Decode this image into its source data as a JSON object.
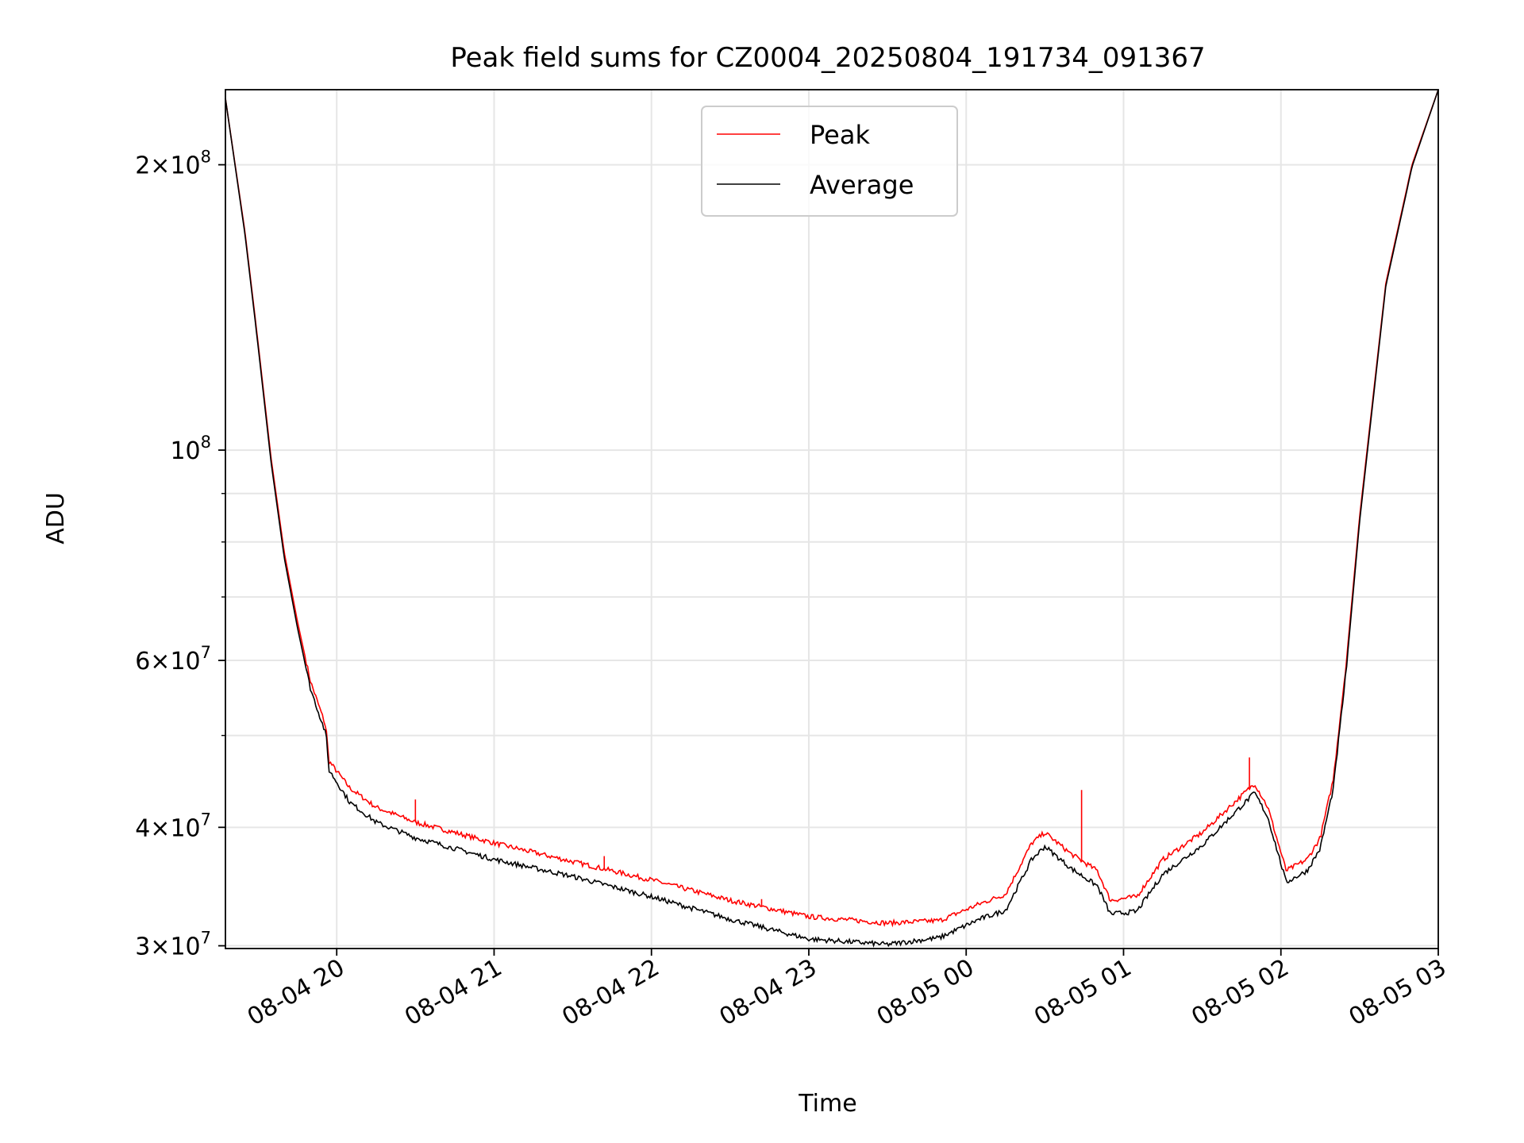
{
  "chart_data": {
    "type": "line",
    "title": "Peak field sums for CZ0004_20250804_191734_091367",
    "xlabel": "Time",
    "ylabel": "ADU",
    "x_is_time": true,
    "xlim": [
      "2025-08-04T19:17:34",
      "2025-08-05T03:00:00"
    ],
    "ylim": [
      29800000,
      240000000
    ],
    "yscale": "log",
    "grid": true,
    "legend_position": "upper center",
    "x_ticks": [
      {
        "value": "2025-08-04T20:00",
        "label": "08-04 20"
      },
      {
        "value": "2025-08-04T21:00",
        "label": "08-04 21"
      },
      {
        "value": "2025-08-04T22:00",
        "label": "08-04 22"
      },
      {
        "value": "2025-08-04T23:00",
        "label": "08-04 23"
      },
      {
        "value": "2025-08-05T00:00",
        "label": "08-05 00"
      },
      {
        "value": "2025-08-05T01:00",
        "label": "08-05 01"
      },
      {
        "value": "2025-08-05T02:00",
        "label": "08-05 02"
      },
      {
        "value": "2025-08-05T03:00",
        "label": "08-05 03"
      }
    ],
    "y_ticks": [
      {
        "value": 30000000,
        "mant": "3",
        "exp": "7"
      },
      {
        "value": 40000000,
        "mant": "4",
        "exp": "7"
      },
      {
        "value": 60000000,
        "mant": "6",
        "exp": "7"
      },
      {
        "value": 100000000,
        "mant": "",
        "exp": "8"
      },
      {
        "value": 200000000,
        "mant": "2",
        "exp": "8"
      }
    ],
    "y_minor": [
      50000000,
      70000000,
      80000000,
      90000000
    ],
    "series": [
      {
        "name": "Peak",
        "color": "#ff0000",
        "points": [
          [
            "2025-08-04T19:17:34",
            235000000
          ],
          [
            "2025-08-04T19:25",
            170000000
          ],
          [
            "2025-08-04T19:30",
            130000000
          ],
          [
            "2025-08-04T19:35",
            98000000
          ],
          [
            "2025-08-04T19:40",
            78000000
          ],
          [
            "2025-08-04T19:45",
            66000000
          ],
          [
            "2025-08-04T19:50",
            57000000
          ],
          [
            "2025-08-04T19:55",
            52000000
          ],
          [
            "2025-08-04T19:56",
            50800000
          ],
          [
            "2025-08-04T19:57",
            47000000
          ],
          [
            "2025-08-04T20:05",
            44000000
          ],
          [
            "2025-08-04T20:15",
            42000000
          ],
          [
            "2025-08-04T20:30",
            40500000
          ],
          [
            "2025-08-04T20:45",
            39500000
          ],
          [
            "2025-08-04T21:00",
            38500000
          ],
          [
            "2025-08-04T21:30",
            36800000
          ],
          [
            "2025-08-04T22:00",
            35200000
          ],
          [
            "2025-08-04T22:30",
            33500000
          ],
          [
            "2025-08-04T23:00",
            32200000
          ],
          [
            "2025-08-04T23:30",
            31700000
          ],
          [
            "2025-08-04T23:50",
            31900000
          ],
          [
            "2025-08-05T00:05",
            33200000
          ],
          [
            "2025-08-05T00:15",
            34000000
          ],
          [
            "2025-08-05T00:25",
            38500000
          ],
          [
            "2025-08-05T00:30",
            39500000
          ],
          [
            "2025-08-05T00:40",
            37500000
          ],
          [
            "2025-08-05T00:50",
            36000000
          ],
          [
            "2025-08-05T00:55",
            33500000
          ],
          [
            "2025-08-05T01:05",
            33800000
          ],
          [
            "2025-08-05T01:15",
            37000000
          ],
          [
            "2025-08-05T01:30",
            39500000
          ],
          [
            "2025-08-05T01:50",
            44500000
          ],
          [
            "2025-08-05T01:55",
            42000000
          ],
          [
            "2025-08-05T02:02",
            36000000
          ],
          [
            "2025-08-05T02:10",
            37000000
          ],
          [
            "2025-08-05T02:15",
            39000000
          ],
          [
            "2025-08-05T02:20",
            45000000
          ],
          [
            "2025-08-05T02:25",
            60000000
          ],
          [
            "2025-08-05T02:30",
            85000000
          ],
          [
            "2025-08-05T02:40",
            150000000
          ],
          [
            "2025-08-05T02:50",
            200000000
          ],
          [
            "2025-08-05T03:00",
            240000000
          ]
        ]
      },
      {
        "name": "Average",
        "color": "#000000",
        "points": [
          [
            "2025-08-04T19:17:34",
            235000000
          ],
          [
            "2025-08-04T19:25",
            169000000
          ],
          [
            "2025-08-04T19:30",
            129000000
          ],
          [
            "2025-08-04T19:35",
            97000000
          ],
          [
            "2025-08-04T19:40",
            77000000
          ],
          [
            "2025-08-04T19:45",
            65000000
          ],
          [
            "2025-08-04T19:50",
            56000000
          ],
          [
            "2025-08-04T19:55",
            51000000
          ],
          [
            "2025-08-04T19:56",
            50000000
          ],
          [
            "2025-08-04T19:57",
            46000000
          ],
          [
            "2025-08-04T20:05",
            42500000
          ],
          [
            "2025-08-04T20:15",
            40500000
          ],
          [
            "2025-08-04T20:30",
            39000000
          ],
          [
            "2025-08-04T20:45",
            38000000
          ],
          [
            "2025-08-04T21:00",
            37000000
          ],
          [
            "2025-08-04T21:30",
            35500000
          ],
          [
            "2025-08-04T22:00",
            33800000
          ],
          [
            "2025-08-04T22:30",
            32000000
          ],
          [
            "2025-08-04T23:00",
            30500000
          ],
          [
            "2025-08-04T23:30",
            30100000
          ],
          [
            "2025-08-04T23:50",
            30600000
          ],
          [
            "2025-08-05T00:05",
            32000000
          ],
          [
            "2025-08-05T00:15",
            32700000
          ],
          [
            "2025-08-05T00:25",
            37000000
          ],
          [
            "2025-08-05T00:30",
            38200000
          ],
          [
            "2025-08-05T00:40",
            36200000
          ],
          [
            "2025-08-05T00:50",
            34700000
          ],
          [
            "2025-08-05T00:55",
            32400000
          ],
          [
            "2025-08-05T01:05",
            32600000
          ],
          [
            "2025-08-05T01:15",
            35700000
          ],
          [
            "2025-08-05T01:30",
            38300000
          ],
          [
            "2025-08-05T01:50",
            43500000
          ],
          [
            "2025-08-05T01:55",
            41000000
          ],
          [
            "2025-08-05T02:02",
            35000000
          ],
          [
            "2025-08-05T02:10",
            36000000
          ],
          [
            "2025-08-05T02:15",
            38000000
          ],
          [
            "2025-08-05T02:20",
            44000000
          ],
          [
            "2025-08-05T02:25",
            59000000
          ],
          [
            "2025-08-05T02:30",
            84000000
          ],
          [
            "2025-08-05T02:40",
            149000000
          ],
          [
            "2025-08-05T02:50",
            199000000
          ],
          [
            "2025-08-05T03:00",
            240000000
          ]
        ]
      }
    ],
    "spikes": [
      {
        "series": "Peak",
        "x": "2025-08-04T20:30",
        "y": 42800000
      },
      {
        "series": "Peak",
        "x": "2025-08-04T21:20",
        "y": 37300000
      },
      {
        "series": "Peak",
        "x": "2025-08-04T21:42",
        "y": 37300000
      },
      {
        "series": "Peak",
        "x": "2025-08-04T22:42",
        "y": 33600000
      },
      {
        "series": "Peak",
        "x": "2025-08-05T00:44",
        "y": 43800000
      },
      {
        "series": "Peak",
        "x": "2025-08-05T01:48",
        "y": 47400000
      }
    ]
  }
}
